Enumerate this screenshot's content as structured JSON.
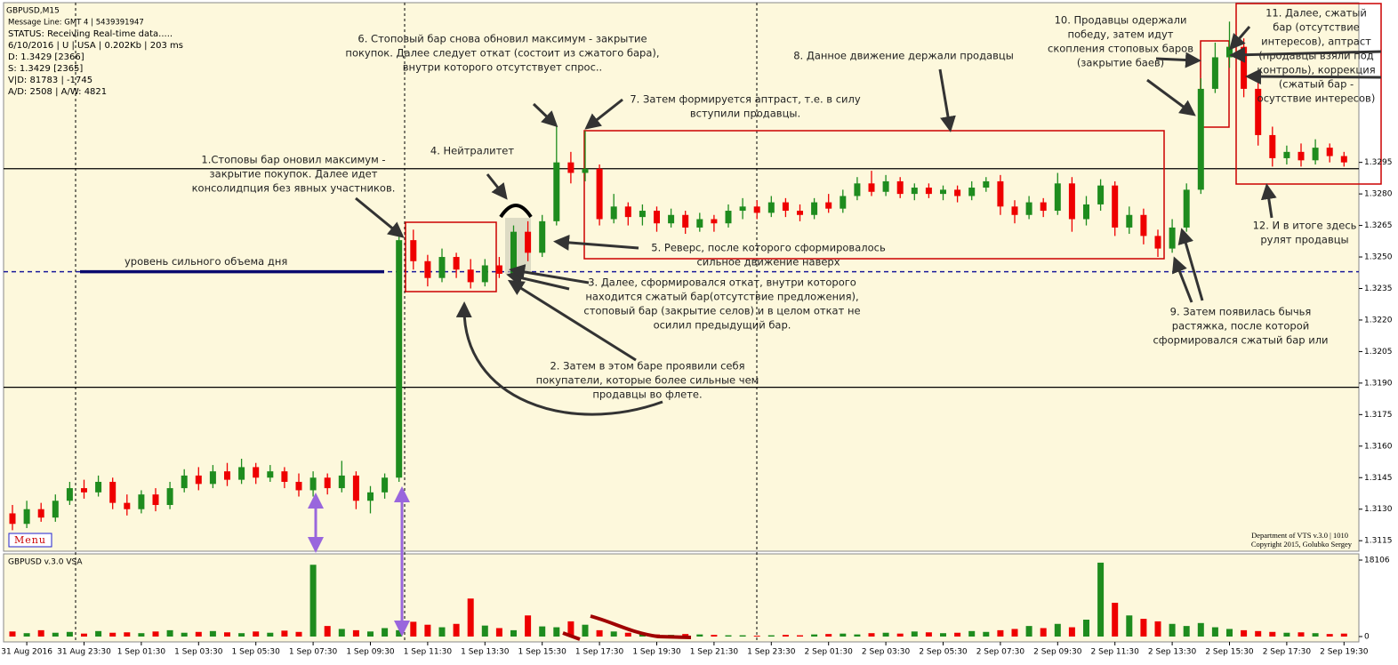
{
  "chart_data": [
    {
      "type": "candlestick",
      "title": "GBPUSD,M15",
      "info_lines": [
        "Message Line: GMT 4 | 5439391947",
        "STATUS:  Receiving Real-time data.....",
        "6/10/2016 | U | USA | 0.202Kb | 203 ms",
        "D: 1.3429  [2366]",
        "S: 1.3429  [2365]",
        "V|D: 81783 | -1745",
        "A/D: 2508 | A/W: 4821"
      ],
      "menu": "Menu",
      "footer": [
        "Department of VTS  v.3.0 | 1010",
        "Copyright 2015, Golubko Sergey"
      ],
      "up_color": "#1e8c1e",
      "down_color": "#ee0000",
      "categories": [
        null,
        "31 Aug 2016",
        null,
        null,
        null,
        "31 Aug 23:30",
        null,
        null,
        null,
        "1 Sep 01:30",
        null,
        null,
        null,
        "1 Sep 03:30",
        null,
        null,
        null,
        "1 Sep 05:30",
        null,
        null,
        null,
        "1 Sep 07:30",
        null,
        null,
        null,
        "1 Sep 09:30",
        null,
        null,
        null,
        "1 Sep 11:30",
        null,
        null,
        null,
        "1 Sep 13:30",
        null,
        null,
        null,
        "1 Sep 15:30",
        null,
        null,
        null,
        "1 Sep 17:30",
        null,
        null,
        null,
        "1 Sep 19:30",
        null,
        null,
        null,
        "1 Sep 21:30",
        null,
        null,
        null,
        "1 Sep 23:30",
        null,
        null,
        null,
        "2 Sep 01:30",
        null,
        null,
        null,
        "2 Sep 03:30",
        null,
        null,
        null,
        "2 Sep 05:30",
        null,
        null,
        null,
        "2 Sep 07:30",
        null,
        null,
        null,
        "2 Sep 09:30",
        null,
        null,
        null,
        "2 Sep 11:30",
        null,
        null,
        null,
        "2 Sep 13:30",
        null,
        null,
        null,
        "2 Sep 15:30",
        null,
        null,
        null,
        "2 Sep 17:30",
        null,
        null,
        null,
        "2 Sep 19:30"
      ],
      "open": [
        1.3128,
        1.3123,
        1.313,
        1.3126,
        1.3134,
        1.314,
        1.3138,
        1.3143,
        1.3133,
        1.313,
        1.3137,
        1.3132,
        1.314,
        1.3146,
        1.3142,
        1.3148,
        1.3144,
        1.315,
        1.3145,
        1.3148,
        1.3143,
        1.3139,
        1.3145,
        1.314,
        1.3146,
        1.3134,
        1.3138,
        1.3145,
        1.3258,
        1.3248,
        1.324,
        1.325,
        1.3244,
        1.3238,
        1.3246,
        1.3242,
        1.3262,
        1.3252,
        1.3267,
        1.3295,
        1.329,
        1.3292,
        1.3268,
        1.3274,
        1.3269,
        1.3272,
        1.3266,
        1.327,
        1.3264,
        1.3268,
        1.3266,
        1.3272,
        1.3274,
        1.3271,
        1.3276,
        1.3272,
        1.327,
        1.3276,
        1.3273,
        1.3279,
        1.3285,
        1.3281,
        1.3286,
        1.328,
        1.3283,
        1.328,
        1.3282,
        1.3279,
        1.3283,
        1.3286,
        1.3274,
        1.327,
        1.3276,
        1.3272,
        1.3285,
        1.3268,
        1.3275,
        1.3284,
        1.3264,
        1.327,
        1.326,
        1.3254,
        1.3264,
        1.3282,
        1.333,
        1.3345,
        1.335,
        1.333,
        1.3308,
        1.3297,
        1.33,
        1.3296,
        1.3302,
        1.3298
      ],
      "high": [
        1.3132,
        1.3134,
        1.3133,
        1.3137,
        1.3143,
        1.3144,
        1.3146,
        1.3145,
        1.3137,
        1.3139,
        1.314,
        1.3143,
        1.3149,
        1.315,
        1.3151,
        1.3152,
        1.3154,
        1.3152,
        1.3151,
        1.315,
        1.3147,
        1.3148,
        1.3147,
        1.3153,
        1.3148,
        1.3141,
        1.3147,
        1.3262,
        1.3263,
        1.3251,
        1.3254,
        1.3252,
        1.3249,
        1.3249,
        1.325,
        1.3265,
        1.3267,
        1.327,
        1.3312,
        1.33,
        1.331,
        1.3294,
        1.328,
        1.3276,
        1.3275,
        1.3274,
        1.3273,
        1.3272,
        1.3271,
        1.327,
        1.3275,
        1.3278,
        1.3277,
        1.3279,
        1.3278,
        1.3275,
        1.3278,
        1.328,
        1.3282,
        1.3288,
        1.3291,
        1.3289,
        1.3288,
        1.3285,
        1.3285,
        1.3284,
        1.3284,
        1.3286,
        1.3288,
        1.3289,
        1.3277,
        1.3279,
        1.3278,
        1.329,
        1.3288,
        1.3279,
        1.3287,
        1.3286,
        1.3274,
        1.3273,
        1.3263,
        1.3268,
        1.3285,
        1.3335,
        1.3352,
        1.3362,
        1.3354,
        1.3334,
        1.3312,
        1.3303,
        1.3304,
        1.3306,
        1.3304,
        1.33
      ],
      "low": [
        1.312,
        1.3121,
        1.3124,
        1.3124,
        1.3132,
        1.3135,
        1.3136,
        1.313,
        1.3127,
        1.3128,
        1.3129,
        1.313,
        1.3138,
        1.3139,
        1.314,
        1.3141,
        1.3142,
        1.3142,
        1.3143,
        1.314,
        1.3136,
        1.3136,
        1.3137,
        1.3138,
        1.313,
        1.3128,
        1.3135,
        1.3143,
        1.3244,
        1.3236,
        1.3238,
        1.324,
        1.3235,
        1.3236,
        1.324,
        1.3241,
        1.3248,
        1.325,
        1.3265,
        1.3285,
        1.3286,
        1.3265,
        1.3266,
        1.3265,
        1.3265,
        1.3262,
        1.3264,
        1.3261,
        1.3262,
        1.3262,
        1.3264,
        1.3268,
        1.3268,
        1.3269,
        1.3269,
        1.3267,
        1.3268,
        1.3271,
        1.3271,
        1.3277,
        1.3279,
        1.3279,
        1.3278,
        1.3277,
        1.3278,
        1.3277,
        1.3276,
        1.3277,
        1.3281,
        1.327,
        1.3266,
        1.3268,
        1.3269,
        1.327,
        1.3262,
        1.3265,
        1.3272,
        1.326,
        1.3261,
        1.3256,
        1.325,
        1.3252,
        1.3262,
        1.328,
        1.3328,
        1.334,
        1.3326,
        1.3303,
        1.3293,
        1.3294,
        1.3293,
        1.3294,
        1.3295,
        1.3293
      ],
      "close": [
        1.3123,
        1.313,
        1.3126,
        1.3134,
        1.314,
        1.3138,
        1.3143,
        1.3133,
        1.313,
        1.3137,
        1.3132,
        1.314,
        1.3146,
        1.3142,
        1.3148,
        1.3144,
        1.315,
        1.3145,
        1.3148,
        1.3143,
        1.3139,
        1.3145,
        1.314,
        1.3146,
        1.3134,
        1.3138,
        1.3145,
        1.3258,
        1.3248,
        1.324,
        1.325,
        1.3244,
        1.3238,
        1.3246,
        1.3242,
        1.3262,
        1.3252,
        1.3267,
        1.3295,
        1.329,
        1.3292,
        1.3268,
        1.3274,
        1.3269,
        1.3272,
        1.3266,
        1.327,
        1.3264,
        1.3268,
        1.3266,
        1.3272,
        1.3274,
        1.3271,
        1.3276,
        1.3272,
        1.327,
        1.3276,
        1.3273,
        1.3279,
        1.3285,
        1.3281,
        1.3286,
        1.328,
        1.3283,
        1.328,
        1.3282,
        1.3279,
        1.3283,
        1.3286,
        1.3274,
        1.327,
        1.3276,
        1.3272,
        1.3285,
        1.3268,
        1.3275,
        1.3284,
        1.3264,
        1.327,
        1.326,
        1.3254,
        1.3264,
        1.3282,
        1.333,
        1.3345,
        1.335,
        1.333,
        1.3308,
        1.3297,
        1.33,
        1.3296,
        1.3302,
        1.3298,
        1.3295
      ],
      "ylim": [
        1.311,
        1.3371
      ],
      "yticks": [
        1.3115,
        {
          "value": 1.313,
          "label": "1.3130"
        },
        1.3145,
        {
          "value": 1.316,
          "label": "1.3160"
        },
        1.3175,
        {
          "value": 1.319,
          "label": "1.3190"
        },
        1.3205,
        {
          "value": 1.322,
          "label": "1.3220"
        },
        1.3235,
        {
          "value": 1.325,
          "label": "1.3250"
        },
        1.3265,
        {
          "value": 1.328,
          "label": "1.3280"
        },
        1.3295
      ],
      "levels": [
        {
          "value": 1.3292,
          "color": "#000000"
        },
        {
          "value": 1.3188,
          "color": "#000000"
        },
        {
          "value": 1.3243,
          "color": "#1a1a9a",
          "dashed": true
        }
      ],
      "strong_volume_level": {
        "label": "уровень сильного объема дня",
        "value": 1.3243,
        "color": "#0a0a6e"
      },
      "annotations": [
        {
          "lines": [
            "1.Стоповы бар оновил максимум -",
            "закрытие покупок. Далее идет",
            "консолидпция без явных участников."
          ]
        },
        {
          "lines": [
            "2. Затем в этом баре проявили себя",
            "покупатели, которые более сильные чем",
            "продавцы во флете."
          ]
        },
        {
          "lines": [
            "3. Далее, сформировался откат, внутри которого",
            "находится сжатый бар(отсутствие предложения),",
            "стоповый бар (закрытие селов) и в целом откат не",
            "осилил предыдущий бар."
          ]
        },
        {
          "lines": [
            "4. Нейтралитет"
          ]
        },
        {
          "lines": [
            "5. Реверс, после которого сформировалось",
            "сильное движение наверх"
          ]
        },
        {
          "lines": [
            "6. Стоповый бар снова обновил максимум - закрытие",
            "покупок. Далее следует откат (состоит из сжатого бара),",
            "внутри которого отсутствует спрос.."
          ]
        },
        {
          "lines": [
            "7. Затем формируется аптраст, т.е. в силу",
            "вступили продавцы."
          ]
        },
        {
          "lines": [
            "8. Данное движение держали продавцы"
          ]
        },
        {
          "lines": [
            "9. Затем появилась бычья",
            "растяжка, после которой",
            "сформировался сжатый бар или"
          ]
        },
        {
          "lines": [
            "10. Продавцы одержали",
            "победу, затем идут",
            "скопления стоповых баров",
            "(закрытие баев)"
          ]
        },
        {
          "lines": [
            "11. Далее, сжатый",
            "бар (отсутствие",
            "интересов), аптраст",
            "(продавцы взяли под",
            "контроль), коррекция",
            "(сжатый бар -",
            "осутствие интересов)"
          ]
        },
        {
          "lines": [
            "12. И в итоге здесь",
            "рулят продавцы"
          ]
        }
      ]
    },
    {
      "type": "bar",
      "title": "GBPUSD v.3.0 VSA",
      "values": [
        1200,
        800,
        1500,
        900,
        1100,
        700,
        1300,
        900,
        1000,
        800,
        1200,
        1500,
        900,
        1100,
        1300,
        1000,
        800,
        1200,
        900,
        1400,
        1100,
        17000,
        2500,
        1800,
        1500,
        1200,
        2000,
        1500,
        3500,
        2800,
        2200,
        3000,
        9000,
        2600,
        2000,
        1500,
        5000,
        2400,
        2200,
        3600,
        2800,
        1500,
        1200,
        900,
        700,
        500,
        400,
        600,
        500,
        400,
        300,
        300,
        200,
        300,
        400,
        300,
        500,
        600,
        700,
        500,
        800,
        900,
        700,
        1200,
        1000,
        800,
        900,
        1300,
        1100,
        1500,
        1800,
        2500,
        2000,
        3000,
        2200,
        4000,
        17500,
        8000,
        5000,
        4200,
        3600,
        3000,
        2500,
        3200,
        2200,
        1800,
        1500,
        1300,
        1100,
        900,
        1000,
        800,
        600,
        700
      ],
      "ylim": [
        0,
        18106
      ],
      "yticks": [
        0,
        18106
      ]
    }
  ]
}
